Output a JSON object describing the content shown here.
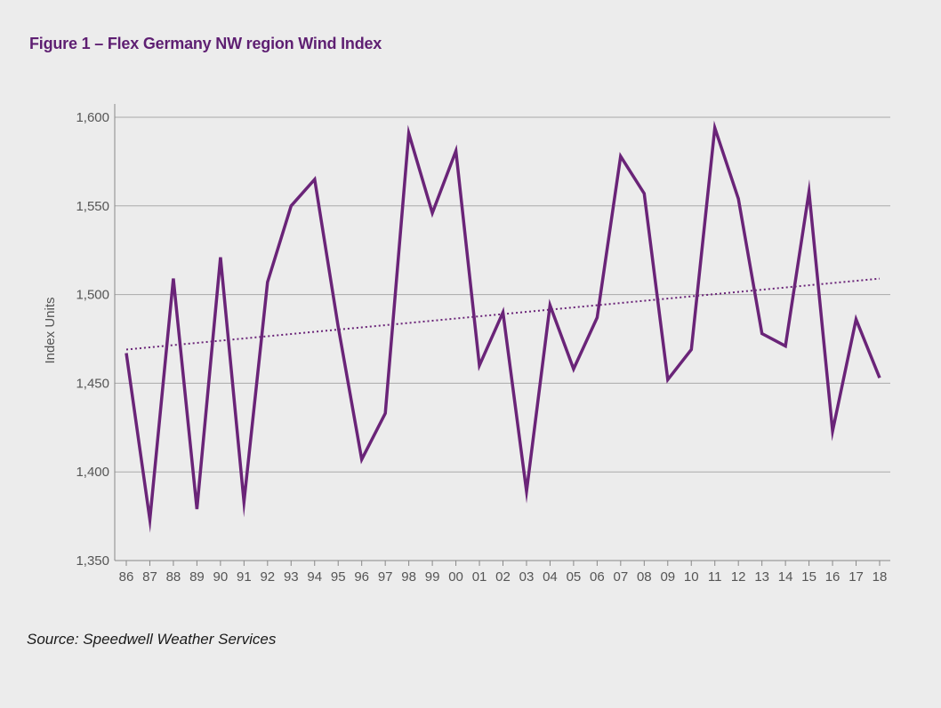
{
  "figure": {
    "title": "Figure 1 – Flex Germany NW region Wind Index",
    "source": "Source: Speedwell Weather Services"
  },
  "colors": {
    "background": "#ececec",
    "series": "#6a2478",
    "trend": "#6a2478",
    "grid": "#a9a9a9",
    "axis_text": "#555555",
    "title": "#5e1f72"
  },
  "chart_data": {
    "type": "line",
    "title": "Figure 1 – Flex Germany NW region Wind Index",
    "xlabel": "",
    "ylabel": "Index Units",
    "ylim": [
      1350,
      1600
    ],
    "yticks": [
      1350,
      1400,
      1450,
      1500,
      1550,
      1600
    ],
    "ytick_labels": [
      "1,350",
      "1,400",
      "1,450",
      "1,500",
      "1,550",
      "1,600"
    ],
    "grid": true,
    "legend": "none",
    "categories": [
      "86",
      "87",
      "88",
      "89",
      "90",
      "91",
      "92",
      "93",
      "94",
      "95",
      "96",
      "97",
      "98",
      "99",
      "00",
      "01",
      "02",
      "03",
      "04",
      "05",
      "06",
      "07",
      "08",
      "09",
      "10",
      "11",
      "12",
      "13",
      "14",
      "15",
      "16",
      "17",
      "18"
    ],
    "series": [
      {
        "style": "solid",
        "values": [
          1467,
          1373,
          1509,
          1379,
          1521,
          1383,
          1507,
          1550,
          1565,
          1482,
          1407,
          1433,
          1591,
          1546,
          1581,
          1460,
          1490,
          1389,
          1494,
          1458,
          1487,
          1578,
          1557,
          1452,
          1469,
          1594,
          1554,
          1478,
          1471,
          1558,
          1423,
          1486,
          1453
        ]
      },
      {
        "style": "dotted",
        "type": "linear-trend",
        "values_start_end": [
          1469,
          1509
        ]
      }
    ]
  }
}
